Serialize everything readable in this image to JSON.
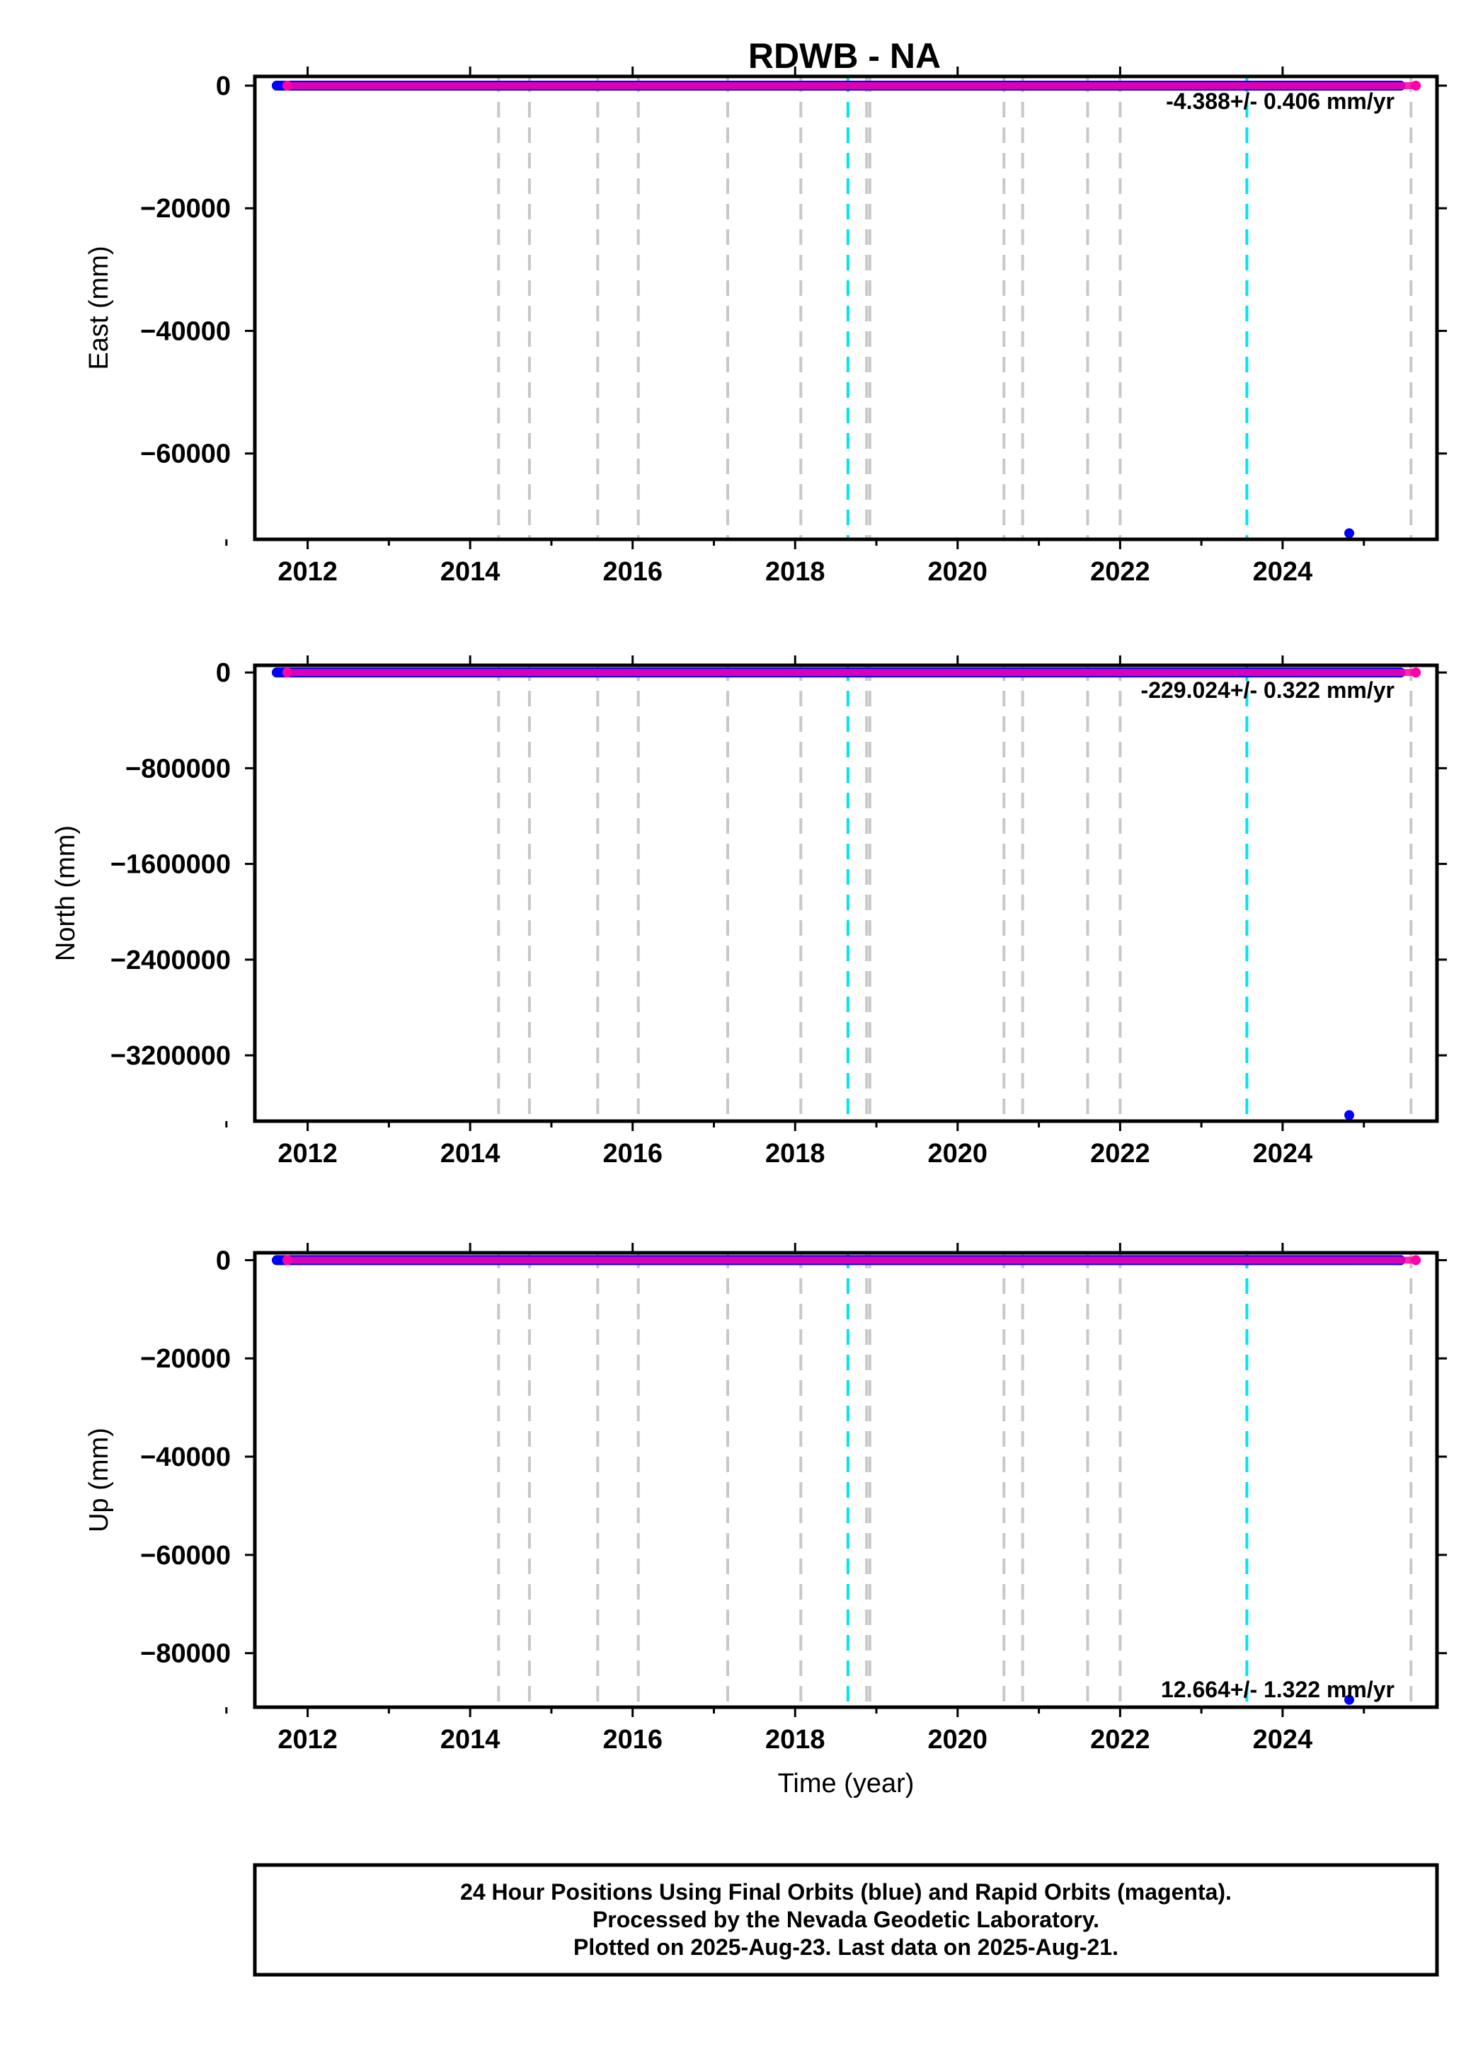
{
  "figure": {
    "title": "RDWB - NA",
    "footer_lines": [
      "24 Hour Positions Using Final Orbits (blue) and Rapid Orbits (magenta).",
      "Processed by the Nevada Geodetic Laboratory.",
      "Plotted on 2025-Aug-23. Last data on 2025-Aug-21."
    ]
  },
  "chart_data": [
    {
      "type": "scatter",
      "ylabel": "East (mm)",
      "xlabel": "",
      "xlim": [
        2011.35,
        2025.9
      ],
      "ylim": [
        -74000,
        1500
      ],
      "x_ticks": [
        2012,
        2014,
        2016,
        2018,
        2020,
        2022,
        2024
      ],
      "x_tick_labels": [
        "2012",
        "2014",
        "2016",
        "2018",
        "2020",
        "2022",
        "2024"
      ],
      "y_ticks": [
        0,
        -20000,
        -40000,
        -60000
      ],
      "y_tick_labels": [
        "0",
        "−20000",
        "−40000",
        "−60000"
      ],
      "rate_text": "-4.388+/- 0.406 mm/yr",
      "rate_position": "top-right",
      "series": [
        {
          "name": "Final Orbits",
          "color": "#0000ff",
          "x_start": 2011.62,
          "x_end": 2025.45,
          "y": 0
        },
        {
          "name": "Rapid Orbits",
          "color": "#ff00aa",
          "x_start": 2011.75,
          "x_end": 2025.64,
          "y": 0
        }
      ],
      "outliers": [
        {
          "x": 2024.82,
          "y": -73000,
          "color": "#0000ff"
        }
      ]
    },
    {
      "type": "scatter",
      "ylabel": "North (mm)",
      "xlabel": "",
      "xlim": [
        2011.35,
        2025.9
      ],
      "ylim": [
        -3750000,
        60000
      ],
      "x_ticks": [
        2012,
        2014,
        2016,
        2018,
        2020,
        2022,
        2024
      ],
      "x_tick_labels": [
        "2012",
        "2014",
        "2016",
        "2018",
        "2020",
        "2022",
        "2024"
      ],
      "y_ticks": [
        0,
        -800000,
        -1600000,
        -2400000,
        -3200000
      ],
      "y_tick_labels": [
        "0",
        "−800000",
        "−1600000",
        "−2400000",
        "−3200000"
      ],
      "rate_text": "-229.024+/- 0.322 mm/yr",
      "rate_position": "top-right",
      "series": [
        {
          "name": "Final Orbits",
          "color": "#0000ff",
          "x_start": 2011.62,
          "x_end": 2025.45,
          "y": 0
        },
        {
          "name": "Rapid Orbits",
          "color": "#ff00aa",
          "x_start": 2011.75,
          "x_end": 2025.64,
          "y": 0
        }
      ],
      "outliers": [
        {
          "x": 2024.82,
          "y": -3700000,
          "color": "#0000ff"
        }
      ]
    },
    {
      "type": "scatter",
      "ylabel": "Up (mm)",
      "xlabel": "Time (year)",
      "xlim": [
        2011.35,
        2025.9
      ],
      "ylim": [
        -91000,
        1500
      ],
      "x_ticks": [
        2012,
        2014,
        2016,
        2018,
        2020,
        2022,
        2024
      ],
      "x_tick_labels": [
        "2012",
        "2014",
        "2016",
        "2018",
        "2020",
        "2022",
        "2024"
      ],
      "y_ticks": [
        0,
        -20000,
        -40000,
        -60000,
        -80000
      ],
      "y_tick_labels": [
        "0",
        "−20000",
        "−40000",
        "−60000",
        "−80000"
      ],
      "rate_text": "12.664+/- 1.322 mm/yr",
      "rate_position": "bottom-right",
      "series": [
        {
          "name": "Final Orbits",
          "color": "#0000ff",
          "x_start": 2011.62,
          "x_end": 2025.45,
          "y": 0
        },
        {
          "name": "Rapid Orbits",
          "color": "#ff00aa",
          "x_start": 2011.75,
          "x_end": 2025.64,
          "y": 0
        }
      ],
      "outliers": [
        {
          "x": 2024.82,
          "y": -89500,
          "color": "#0000ff"
        }
      ]
    }
  ],
  "event_lines": {
    "gray": {
      "color": "#c8c8c8",
      "years": [
        2014.35,
        2014.73,
        2015.57,
        2016.07,
        2017.17,
        2018.07,
        2018.88,
        2018.92,
        2020.57,
        2020.8,
        2021.6,
        2022.0,
        2025.58
      ]
    },
    "cyan": {
      "color": "#00e5ee",
      "years": [
        2018.65,
        2023.56
      ]
    }
  }
}
